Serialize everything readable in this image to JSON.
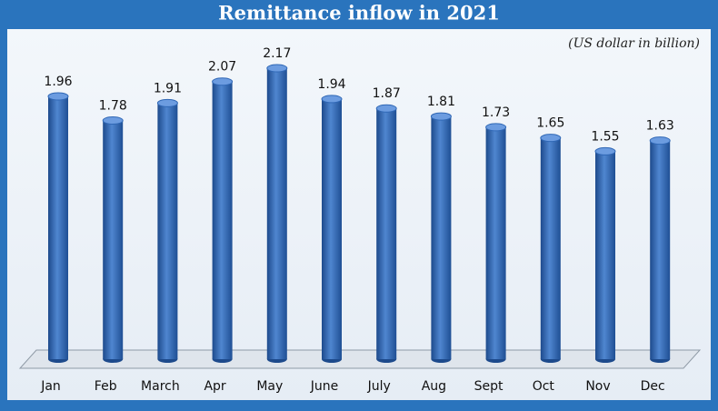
{
  "chart_data": {
    "type": "bar",
    "title": "Remittance inflow in 2021",
    "subtitle": "(US dollar in billion)",
    "categories": [
      "Jan",
      "Feb",
      "March",
      "Apr",
      "May",
      "June",
      "July",
      "Aug",
      "Sept",
      "Oct",
      "Nov",
      "Dec"
    ],
    "values": [
      1.96,
      1.78,
      1.91,
      2.07,
      2.17,
      1.94,
      1.87,
      1.81,
      1.73,
      1.65,
      1.55,
      1.63
    ],
    "color": "#2f67b5"
  }
}
